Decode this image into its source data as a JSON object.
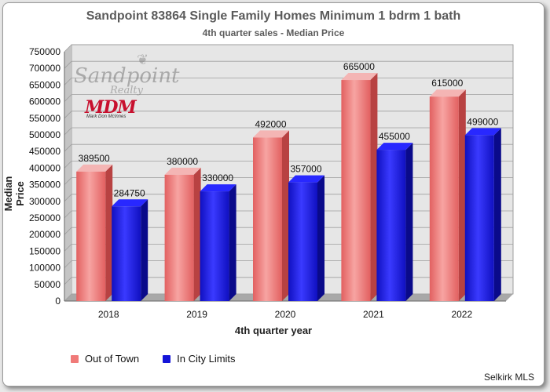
{
  "chart_data": {
    "type": "bar",
    "title": "Sandpoint 83864 Single Family Homes Minimum 1 bdrm 1 bath",
    "subtitle": "4th quarter sales - Median Price",
    "xlabel": "4th quarter year",
    "ylabel": "Median Price",
    "categories": [
      "2018",
      "2019",
      "2020",
      "2021",
      "2022"
    ],
    "series": [
      {
        "name": "Out of Town",
        "values": [
          389500,
          380000,
          492000,
          665000,
          615000
        ],
        "color": "#f07a78"
      },
      {
        "name": "In City Limits",
        "values": [
          284750,
          330000,
          357000,
          455000,
          499000
        ],
        "color": "#1414d8"
      }
    ],
    "ylim": [
      0,
      750000
    ],
    "yticks": [
      "0",
      "50000",
      "100000",
      "150000",
      "200000",
      "250000",
      "300000",
      "350000",
      "400000",
      "450000",
      "500000",
      "550000",
      "600000",
      "650000",
      "700000",
      "750000"
    ],
    "grid": true,
    "legend_position": "bottom-left",
    "source": "Selkirk MLS"
  },
  "logo": {
    "line1": "Sandpoint",
    "line2": "Realty",
    "mark": "MDM",
    "mark_sub": "Mark Don McInnes"
  },
  "colors": {
    "plot_background": "#e6e6e6",
    "frame_background": "#ffffff"
  }
}
